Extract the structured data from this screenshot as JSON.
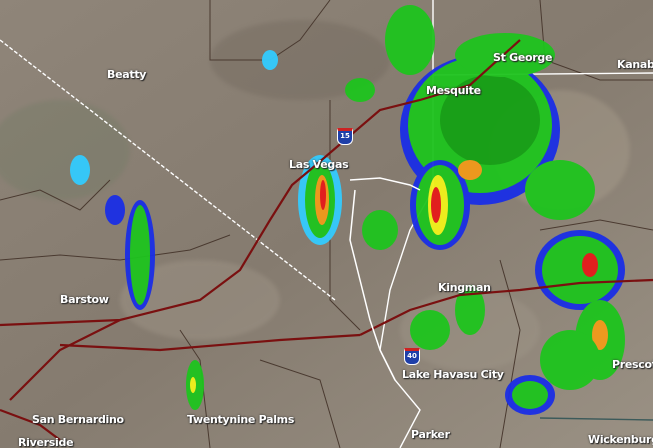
{
  "map": {
    "type": "weather-radar",
    "cities": [
      {
        "name": "Beatty"
      },
      {
        "name": "Las Vegas"
      },
      {
        "name": "Mesquite"
      },
      {
        "name": "St George"
      },
      {
        "name": "Kanab"
      },
      {
        "name": "Kingman"
      },
      {
        "name": "Barstow"
      },
      {
        "name": "Lake Havasu City"
      },
      {
        "name": "Prescott"
      },
      {
        "name": "San Bernardino"
      },
      {
        "name": "Riverside"
      },
      {
        "name": "Twentynine Palms"
      },
      {
        "name": "Parker"
      },
      {
        "name": "Wickenburg"
      }
    ],
    "highways": [
      {
        "label": "15"
      },
      {
        "label": "40"
      }
    ],
    "colors": {
      "terrain": "#8a8073",
      "road": "#7a1010",
      "state_line": "#ffffff",
      "radar_light_blue": "#33ccff",
      "radar_blue": "#1a2ee6",
      "radar_green": "#1ec41e",
      "radar_dark_green": "#0e8a0e",
      "radar_yellow": "#f2f21a",
      "radar_orange": "#f29a1a",
      "radar_red": "#e61a1a"
    }
  }
}
